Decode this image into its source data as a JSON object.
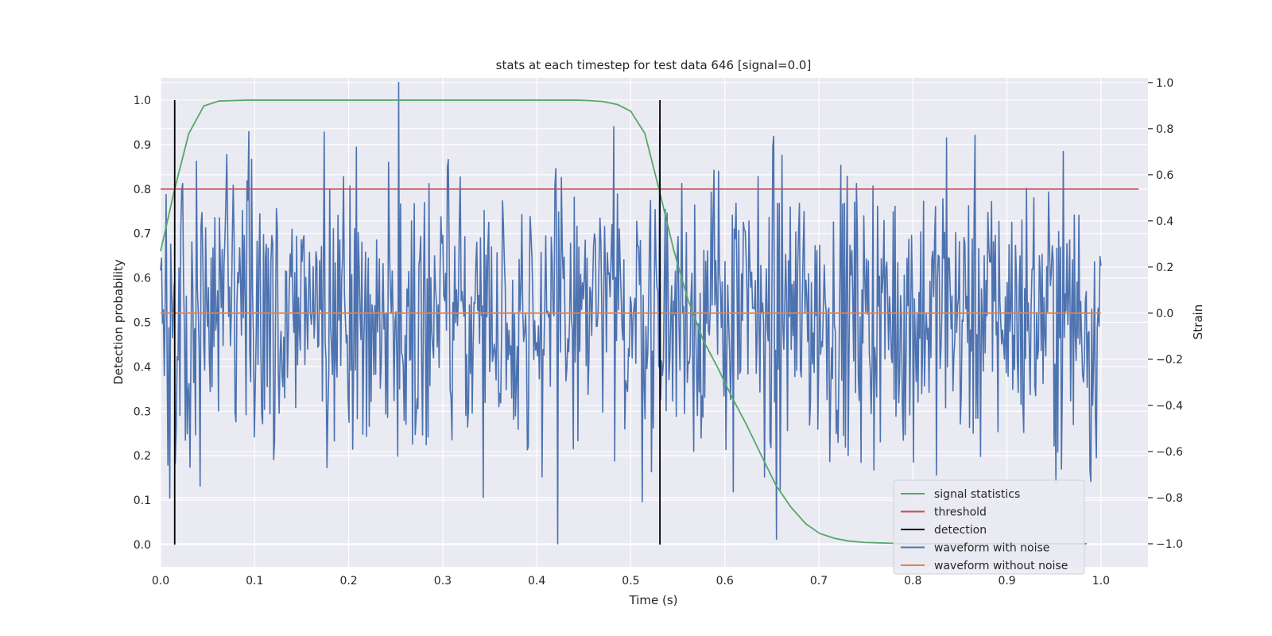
{
  "chart_data": {
    "type": "line",
    "title": "stats at each timestep for test data 646 [signal=0.0]",
    "xlabel": "Time (s)",
    "ylabel_left": "Detection probability",
    "ylabel_right": "Strain",
    "xlim": [
      0.0,
      1.05
    ],
    "ylim_left": [
      -0.05,
      1.05
    ],
    "ylim_right": [
      -1.1,
      1.02
    ],
    "xticks": [
      "0.0",
      "0.1",
      "0.2",
      "0.3",
      "0.4",
      "0.5",
      "0.6",
      "0.7",
      "0.8",
      "0.9",
      "1.0"
    ],
    "yticks_left": [
      "0.0",
      "0.1",
      "0.2",
      "0.3",
      "0.4",
      "0.5",
      "0.6",
      "0.7",
      "0.8",
      "0.9",
      "1.0"
    ],
    "yticks_right": [
      "−1.0",
      "−0.8",
      "−0.6",
      "−0.4",
      "−0.2",
      "0.0",
      "0.2",
      "0.4",
      "0.6",
      "0.8",
      "1.0"
    ],
    "grid": true,
    "legend_position": "lower-right",
    "colors": {
      "signal_statistics": "#55a868",
      "threshold": "#c44e52",
      "detection": "#000000",
      "waveform_with_noise": "#4c72b0",
      "waveform_without_noise": "#dd8452",
      "background": "#eaeaf2",
      "grid": "#ffffff"
    },
    "series": [
      {
        "name": "signal statistics",
        "axis": "left",
        "x": [
          0.0,
          0.015,
          0.03,
          0.046,
          0.062,
          0.078,
          0.093,
          0.109,
          0.2,
          0.3,
          0.4,
          0.44,
          0.455,
          0.47,
          0.486,
          0.5,
          0.515,
          0.53,
          0.546,
          0.561,
          0.577,
          0.592,
          0.608,
          0.623,
          0.639,
          0.654,
          0.67,
          0.686,
          0.701,
          0.717,
          0.732,
          0.748,
          0.763,
          0.779,
          0.795,
          0.81,
          0.9,
          0.985
        ],
        "y": [
          0.66,
          0.8,
          0.925,
          0.987,
          0.998,
          0.999,
          1.0,
          1.0,
          1.0,
          1.0,
          1.0,
          1.0,
          0.999,
          0.997,
          0.99,
          0.975,
          0.925,
          0.8,
          0.66,
          0.55,
          0.46,
          0.4,
          0.33,
          0.27,
          0.2,
          0.135,
          0.085,
          0.047,
          0.025,
          0.014,
          0.008,
          0.005,
          0.004,
          0.003,
          0.002,
          0.002,
          0.002,
          0.002
        ]
      },
      {
        "name": "threshold",
        "axis": "left",
        "x": [
          0.0,
          1.04
        ],
        "y": [
          0.8,
          0.8
        ]
      },
      {
        "name": "detection",
        "axis": "left",
        "type": "vlines",
        "x": [
          0.015,
          0.531
        ],
        "y": [
          0.0,
          1.0
        ]
      },
      {
        "name": "waveform with noise",
        "axis": "right",
        "x_start": 0.0,
        "x_end": 1.0,
        "samples": 1024,
        "seed": 646,
        "std": 0.3,
        "spikes": [
          {
            "x": 0.253,
            "y": 1.0
          },
          {
            "x": 0.252,
            "y": -0.62
          },
          {
            "x": 0.422,
            "y": -1.0
          },
          {
            "x": 0.836,
            "y": 0.76
          },
          {
            "x": 0.208,
            "y": 0.72
          },
          {
            "x": 0.531,
            "y": 0.83
          },
          {
            "x": 0.655,
            "y": -0.98
          },
          {
            "x": 0.989,
            "y": -0.73
          },
          {
            "x": 0.016,
            "y": -0.65
          },
          {
            "x": 0.042,
            "y": -0.75
          }
        ]
      },
      {
        "name": "waveform without noise",
        "axis": "right",
        "x": [
          0.0,
          1.0
        ],
        "y": [
          0.0,
          0.0
        ]
      }
    ]
  }
}
